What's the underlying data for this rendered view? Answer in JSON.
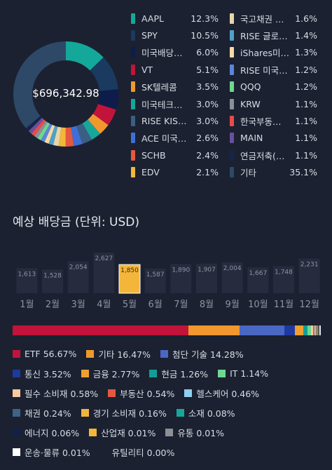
{
  "portfolio": {
    "total_value": "$696,342.98",
    "holdings_left": [
      {
        "name": "AAPL",
        "pct": "12.3%",
        "color": "#14a89a",
        "value": 12.3
      },
      {
        "name": "SPY",
        "pct": "10.5%",
        "color": "#1a3a60",
        "value": 10.5
      },
      {
        "name": "미국배당…",
        "pct": "6.0%",
        "color": "#0e1c4c",
        "value": 6.0
      },
      {
        "name": "VT",
        "pct": "5.1%",
        "color": "#c2143a",
        "value": 5.1
      },
      {
        "name": "SK텔레콤",
        "pct": "3.5%",
        "color": "#f0982e",
        "value": 3.5
      },
      {
        "name": "미국테크…",
        "pct": "3.0%",
        "color": "#17a79a",
        "value": 3.0
      },
      {
        "name": "RISE KIS…",
        "pct": "3.0%",
        "color": "#3b5e82",
        "value": 3.0
      },
      {
        "name": "ACE 미국…",
        "pct": "2.6%",
        "color": "#3f6fd6",
        "value": 2.6
      },
      {
        "name": "SCHB",
        "pct": "2.4%",
        "color": "#e6573f",
        "value": 2.4
      },
      {
        "name": "EDV",
        "pct": "2.1%",
        "color": "#f2b73a",
        "value": 2.1
      }
    ],
    "holdings_right": [
      {
        "name": "국고채권 …",
        "pct": "1.6%",
        "color": "#e8d5a8",
        "value": 1.6
      },
      {
        "name": "RISE 글로…",
        "pct": "1.4%",
        "color": "#4fa1c8",
        "value": 1.4
      },
      {
        "name": "iShares미…",
        "pct": "1.3%",
        "color": "#f6d9a8",
        "value": 1.3
      },
      {
        "name": "RISE 미국…",
        "pct": "1.2%",
        "color": "#5b86d8",
        "value": 1.2
      },
      {
        "name": "QQQ",
        "pct": "1.2%",
        "color": "#6fd890",
        "value": 1.2
      },
      {
        "name": "KRW",
        "pct": "1.1%",
        "color": "#8c8f96",
        "value": 1.1
      },
      {
        "name": "한국부동…",
        "pct": "1.1%",
        "color": "#e94b4b",
        "value": 1.1
      },
      {
        "name": "MAIN",
        "pct": "1.1%",
        "color": "#6a4f9e",
        "value": 1.1
      },
      {
        "name": "연금저축(…",
        "pct": "1.1%",
        "color": "#16254a",
        "value": 1.1
      },
      {
        "name": "기타",
        "pct": "35.1%",
        "color": "#2e4868",
        "value": 35.1
      }
    ]
  },
  "dividends": {
    "title": "예상 배당금 (단위: USD)",
    "selected_month": "5월",
    "bar_color": "#262c3e",
    "selected_color": "#f3b63b"
  },
  "chart_data": {
    "type": "bar",
    "title": "예상 배당금 (단위: USD)",
    "categories": [
      "1월",
      "2월",
      "3월",
      "4월",
      "5월",
      "6월",
      "7월",
      "8월",
      "9월",
      "10월",
      "11월",
      "12월"
    ],
    "values": [
      1613,
      1528,
      2054,
      2627,
      1850,
      1587,
      1890,
      1907,
      2004,
      1667,
      1748,
      2231
    ],
    "value_labels": [
      "1,613",
      "1,528",
      "2,054",
      "2,627",
      "1,850",
      "1,587",
      "1,890",
      "1,907",
      "2,004",
      "1,667",
      "1,748",
      "2,231"
    ],
    "xlabel": "",
    "ylabel": "",
    "ylim": [
      0,
      2627
    ]
  },
  "allocation": {
    "segments": [
      {
        "label": "ETF 56.67%",
        "value": 56.67,
        "color": "#c2143a"
      },
      {
        "label": "기타 16.47%",
        "value": 16.47,
        "color": "#f0982e"
      },
      {
        "label": "첨단 기술 14.28%",
        "value": 14.28,
        "color": "#4a67c4"
      },
      {
        "label": "통신 3.52%",
        "value": 3.52,
        "color": "#1e3aa0"
      },
      {
        "label": "금융 2.77%",
        "value": 2.77,
        "color": "#f0a030"
      },
      {
        "label": "현금 1.26%",
        "value": 1.26,
        "color": "#129e96"
      },
      {
        "label": "IT 1.14%",
        "value": 1.14,
        "color": "#6fd890"
      },
      {
        "label": "필수 소비재 0.58%",
        "value": 0.58,
        "color": "#f6c9a0"
      },
      {
        "label": "부동산 0.54%",
        "value": 0.54,
        "color": "#e6573f"
      },
      {
        "label": "헬스케어 0.46%",
        "value": 0.46,
        "color": "#8fd0f0"
      },
      {
        "label": "채권 0.24%",
        "value": 0.24,
        "color": "#3b6487"
      },
      {
        "label": "경기 소비재 0.16%",
        "value": 0.16,
        "color": "#f2b73a"
      },
      {
        "label": "소재 0.08%",
        "value": 0.08,
        "color": "#17a79a"
      },
      {
        "label": "에너지 0.06%",
        "value": 0.06,
        "color": "#10204a"
      },
      {
        "label": "산업재 0.01%",
        "value": 0.01,
        "color": "#f3b63b"
      },
      {
        "label": "유통 0.01%",
        "value": 0.01,
        "color": "#8c8f96"
      },
      {
        "label": "운송·물류 0.01%",
        "value": 0.01,
        "color": "#ffffff"
      },
      {
        "label": "유틸리티 0.00%",
        "value": 0.0,
        "color": ""
      }
    ]
  }
}
